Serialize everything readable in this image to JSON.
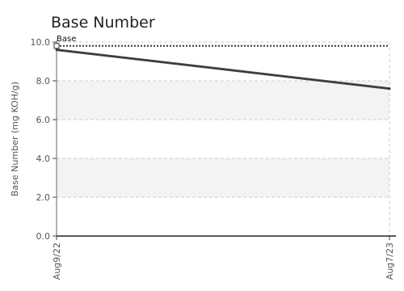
{
  "chart_data": {
    "type": "line",
    "title": "Base Number",
    "ylabel": "Base Number (mg KOH/g)",
    "xlabel": "",
    "ylim": [
      0,
      10
    ],
    "yticks": [
      "0.0",
      "2.0",
      "4.0",
      "6.0",
      "8.0",
      "10.0"
    ],
    "x": [
      "Aug9/22",
      "Aug7/23"
    ],
    "series": [
      {
        "name": "",
        "values": [
          9.6,
          7.6
        ],
        "color": "#555555"
      }
    ],
    "reference_lines": [
      {
        "label": "Base",
        "value": 9.8,
        "style": "dotted",
        "color": "#333333"
      }
    ],
    "grid": true,
    "band_color": "#f3f3f3",
    "grid_color": "#cccccc"
  }
}
